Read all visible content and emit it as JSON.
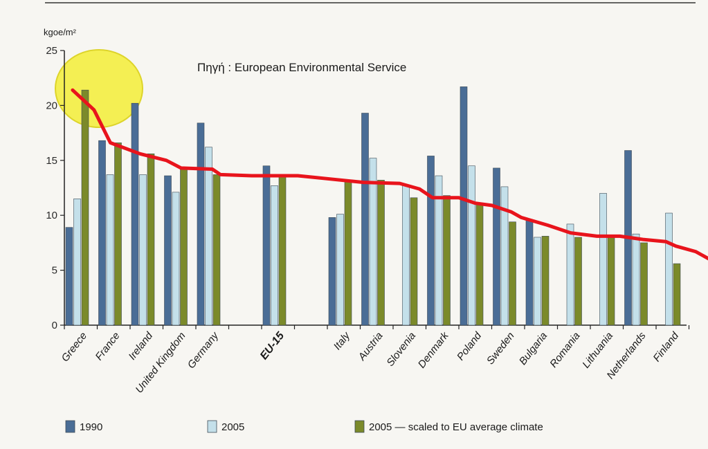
{
  "chart_data": {
    "type": "bar",
    "ylabel": "kgoe/m²",
    "source_note": "Πηγή : European Environmental Service",
    "ylim": [
      0,
      25
    ],
    "yticks": [
      0,
      5,
      10,
      15,
      20,
      25
    ],
    "categories": [
      "Greece",
      "France",
      "Ireland",
      "United Kingdom",
      "Germany",
      "",
      "EU-15",
      "",
      "Italy",
      "Austria",
      "Slovenia",
      "Denmark",
      "Poland",
      "Sweden",
      "Bulgaria",
      "Romania",
      "Lithuania",
      "Netherlands",
      "Finland"
    ],
    "bold_categories": [
      "EU-15"
    ],
    "series": [
      {
        "name": "1990",
        "color": "#4a6d96",
        "values": [
          8.9,
          16.8,
          20.2,
          13.6,
          18.4,
          null,
          14.5,
          null,
          9.8,
          19.3,
          null,
          15.4,
          21.7,
          14.3,
          9.6,
          null,
          null,
          15.9,
          null
        ]
      },
      {
        "name": "2005",
        "color": "#c4e0ea",
        "values": [
          11.5,
          13.7,
          13.7,
          12.1,
          16.2,
          null,
          12.7,
          null,
          10.1,
          15.2,
          12.7,
          13.6,
          14.5,
          12.6,
          8.0,
          9.2,
          12.0,
          8.3,
          10.2
        ]
      },
      {
        "name": "2005 — scaled to EU average climate",
        "color": "#7b8a2a",
        "values": [
          21.4,
          16.6,
          15.6,
          14.4,
          13.7,
          null,
          13.6,
          null,
          13.1,
          13.2,
          11.6,
          11.8,
          11.0,
          9.4,
          8.1,
          8.0,
          8.0,
          7.5,
          5.6
        ]
      }
    ],
    "annotation": {
      "type": "red trend line",
      "color": "#e8141c",
      "points": [
        [
          0.25,
          21.4
        ],
        [
          0.9,
          19.6
        ],
        [
          1.4,
          16.6
        ],
        [
          2.3,
          15.6
        ],
        [
          3.1,
          15.0
        ],
        [
          3.55,
          14.3
        ],
        [
          4.5,
          14.2
        ],
        [
          4.75,
          13.7
        ],
        [
          5.7,
          13.6
        ],
        [
          7.1,
          13.6
        ],
        [
          8.1,
          13.3
        ],
        [
          9.1,
          13.0
        ],
        [
          10.2,
          12.9
        ],
        [
          10.8,
          12.4
        ],
        [
          11.2,
          11.6
        ],
        [
          12.0,
          11.6
        ],
        [
          12.5,
          11.1
        ],
        [
          13.0,
          10.9
        ],
        [
          13.6,
          10.3
        ],
        [
          13.9,
          9.8
        ],
        [
          14.7,
          9.1
        ],
        [
          15.4,
          8.4
        ],
        [
          16.2,
          8.1
        ],
        [
          16.9,
          8.1
        ],
        [
          17.6,
          7.8
        ],
        [
          18.3,
          7.6
        ],
        [
          18.6,
          7.2
        ],
        [
          19.2,
          6.7
        ],
        [
          19.75,
          5.8
        ]
      ]
    },
    "highlight_category": "Greece",
    "highlight_color": "#f4ee3c",
    "grid": false,
    "legend_position": "bottom"
  }
}
